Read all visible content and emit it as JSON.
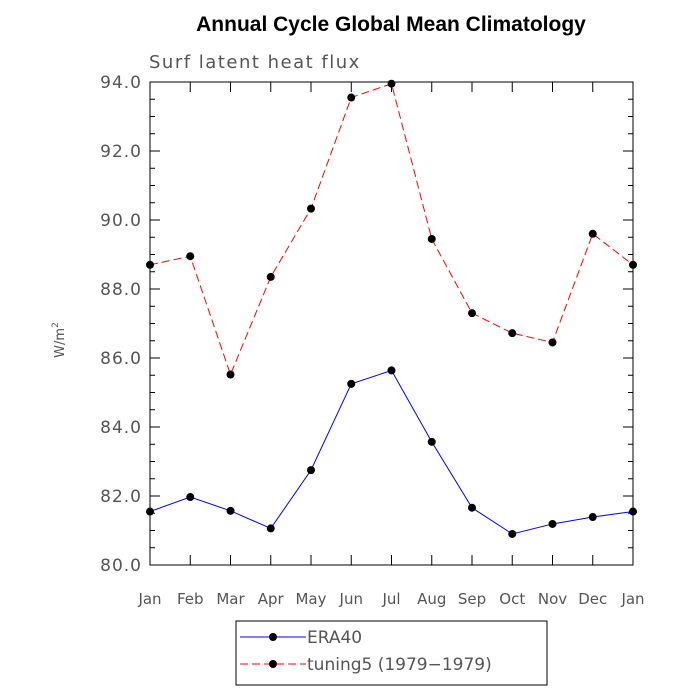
{
  "chart_data": {
    "type": "line",
    "title": "Annual Cycle Global Mean Climatology",
    "subtitle": "Surf latent heat flux",
    "ylabel": "W/m",
    "ylabel_sup": "2",
    "xlabel": "",
    "categories": [
      "Jan",
      "Feb",
      "Mar",
      "Apr",
      "May",
      "Jun",
      "Jul",
      "Aug",
      "Sep",
      "Oct",
      "Nov",
      "Dec",
      "Jan"
    ],
    "yticks": [
      "80.0",
      "82.0",
      "84.0",
      "86.0",
      "88.0",
      "90.0",
      "92.0",
      "94.0"
    ],
    "ylim": [
      80,
      94
    ],
    "grid": false,
    "legend_position": "bottom",
    "series": [
      {
        "name": "ERA40",
        "color": "#0000ff",
        "dash": "solid",
        "values": [
          81.55,
          81.97,
          81.57,
          81.06,
          82.75,
          85.25,
          85.64,
          83.57,
          81.66,
          80.9,
          81.19,
          81.39,
          81.55
        ]
      },
      {
        "name": "tuning5 (1979−1979)",
        "color": "#ff0000",
        "dash": "dashed",
        "values": [
          88.7,
          88.95,
          85.52,
          88.35,
          90.33,
          93.55,
          93.95,
          89.45,
          87.3,
          86.72,
          86.45,
          89.6,
          88.7
        ]
      }
    ]
  }
}
